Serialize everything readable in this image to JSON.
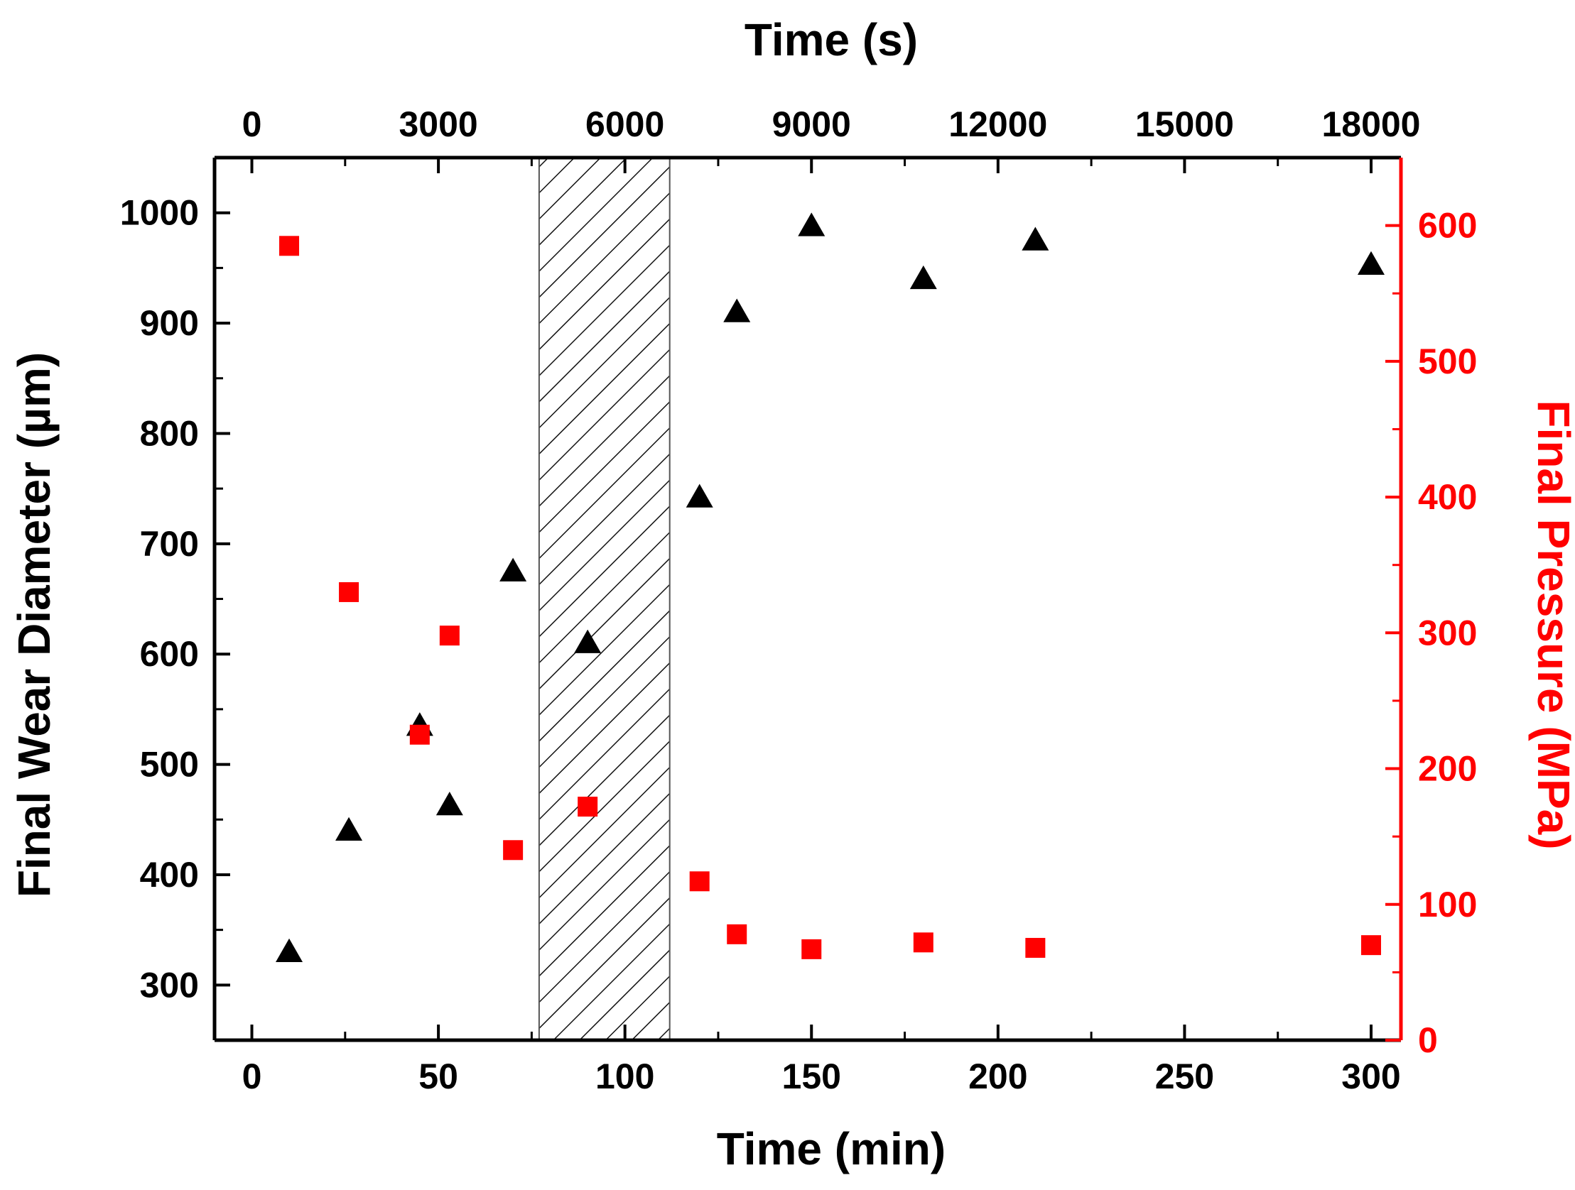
{
  "chart_data": {
    "type": "scatter",
    "xlabel_bottom": "Time (min)",
    "xlabel_top": "Time (s)",
    "ylabel_left": "Final Wear Diameter (µm)",
    "ylabel_right": "Final Pressure (MPa)",
    "x_range": [
      -10,
      308
    ],
    "x_ticks": [
      0,
      50,
      100,
      150,
      200,
      250,
      300
    ],
    "x_top_ticks": [
      {
        "label": "0",
        "x": 0
      },
      {
        "label": "3000",
        "x": 50
      },
      {
        "label": "6000",
        "x": 100
      },
      {
        "label": "9000",
        "x": 150
      },
      {
        "label": "12000",
        "x": 200
      },
      {
        "label": "15000",
        "x": 250
      },
      {
        "label": "18000",
        "x": 300
      }
    ],
    "y_left_range": [
      250,
      1050
    ],
    "y_left_ticks": [
      300,
      400,
      500,
      600,
      700,
      800,
      900,
      1000
    ],
    "y_right_range": [
      0,
      650
    ],
    "y_right_ticks": [
      0,
      100,
      200,
      300,
      400,
      500,
      600
    ],
    "shaded_region": {
      "x_start": 77,
      "x_end": 112,
      "pattern": "diagonal hatch"
    },
    "series": [
      {
        "name": "Final Wear Diameter",
        "axis": "left",
        "marker": "triangle",
        "color": "#000000",
        "x": [
          10,
          26,
          45,
          53,
          70,
          90,
          120,
          130,
          150,
          180,
          210,
          300
        ],
        "y": [
          330,
          440,
          535,
          463,
          675,
          610,
          742,
          910,
          988,
          940,
          975,
          953
        ]
      },
      {
        "name": "Final Pressure",
        "axis": "right",
        "marker": "square",
        "color": "#ff0000",
        "x": [
          10,
          26,
          45,
          53,
          70,
          90,
          120,
          130,
          150,
          180,
          210,
          300
        ],
        "y": [
          585,
          330,
          225,
          298,
          140,
          172,
          117,
          78,
          67,
          72,
          68,
          70
        ]
      }
    ]
  }
}
